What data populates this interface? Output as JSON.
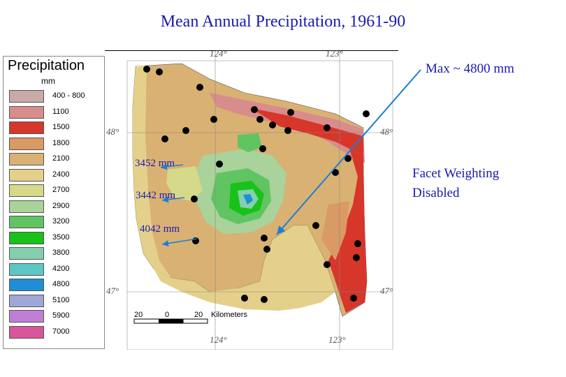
{
  "title": "Mean Annual Precipitation, 1961-90",
  "legend": {
    "title": "Precipitation",
    "unit": "mm",
    "items": [
      {
        "label": "400 - 800",
        "color": "#c9aaa6"
      },
      {
        "label": "1100",
        "color": "#d98c8c"
      },
      {
        "label": "1500",
        "color": "#d7362b"
      },
      {
        "label": "1800",
        "color": "#d99a63"
      },
      {
        "label": "2100",
        "color": "#d9b173"
      },
      {
        "label": "2400",
        "color": "#e4d08a"
      },
      {
        "label": "2700",
        "color": "#d6d98a"
      },
      {
        "label": "2900",
        "color": "#a9d39a"
      },
      {
        "label": "3200",
        "color": "#61c462"
      },
      {
        "label": "3500",
        "color": "#18c219"
      },
      {
        "label": "3800",
        "color": "#84cfae"
      },
      {
        "label": "4200",
        "color": "#5cc7c3"
      },
      {
        "label": "4800",
        "color": "#1f8ed6"
      },
      {
        "label": "5100",
        "color": "#9fa7d6"
      },
      {
        "label": "5900",
        "color": "#c07fd6"
      },
      {
        "label": "7000",
        "color": "#d9559a"
      }
    ]
  },
  "map": {
    "coords": {
      "top_left": "124°",
      "top_right": "123°",
      "left_upper": "48°",
      "right_upper": "48°",
      "left_lower": "47°",
      "right_lower": "47°",
      "bottom_left": "124°",
      "bottom_right": "123°"
    },
    "scale": {
      "n20a": "20",
      "n0": "0",
      "n20b": "20",
      "unit": "Kilometers"
    }
  },
  "annotations": {
    "a1": "3452 mm",
    "a2": "3442 mm",
    "a3": "4042 mm",
    "max": "Max ~ 4800 mm",
    "facet_line1": "Facet Weighting",
    "facet_line2": "Disabled"
  },
  "colors": {
    "title_blue": "#1a1ab0",
    "arrow_blue": "#1a7fd4"
  }
}
